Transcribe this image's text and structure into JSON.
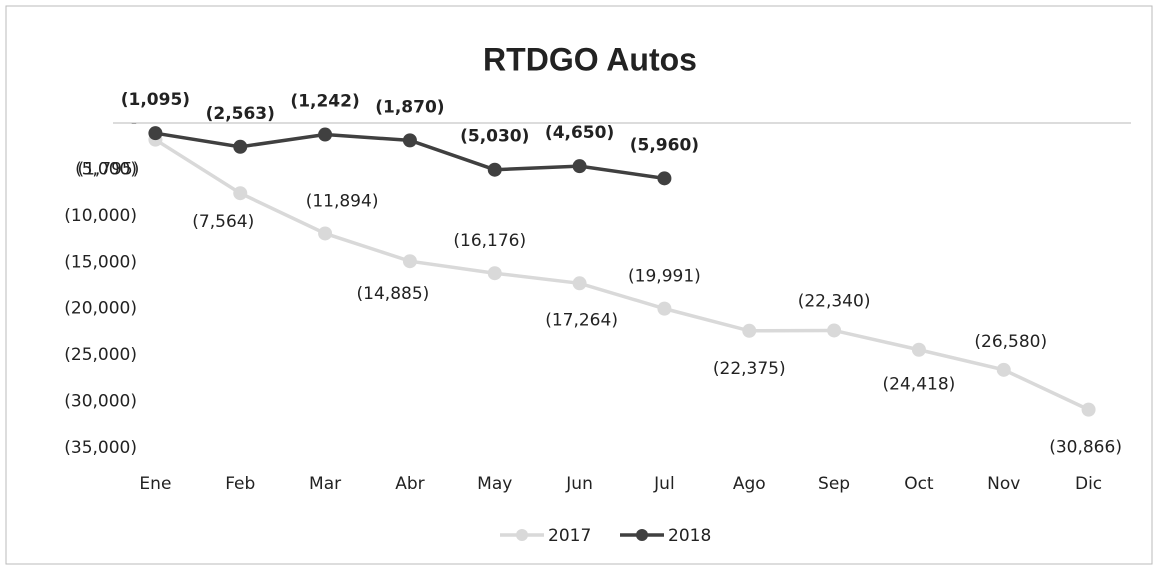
{
  "chart_data": {
    "type": "line",
    "title": "RTDGO Autos",
    "categories": [
      "Ene",
      "Feb",
      "Mar",
      "Abr",
      "May",
      "Jun",
      "Jul",
      "Ago",
      "Sep",
      "Oct",
      "Nov",
      "Dic"
    ],
    "series": [
      {
        "name": "2017",
        "color": "#d9d9d9",
        "values": [
          -1795,
          -7564,
          -11894,
          -14885,
          -16176,
          -17264,
          -19991,
          -22375,
          -22340,
          -24418,
          -26580,
          -30866
        ],
        "value_labels": [
          "(1,795)",
          "(7,564)",
          "(11,894)",
          "(14,885)",
          "(16,176)",
          "(17,264)",
          "(19,991)",
          "(22,375)",
          "(22,340)",
          "(24,418)",
          "(26,580)",
          "(30,866)"
        ]
      },
      {
        "name": "2018",
        "color": "#404040",
        "values": [
          -1095,
          -2563,
          -1242,
          -1870,
          -5030,
          -4650,
          -5960,
          null,
          null,
          null,
          null,
          null
        ],
        "value_labels": [
          "(1,095)",
          "(2,563)",
          "(1,242)",
          "(1,870)",
          "(5,030)",
          "(4,650)",
          "(5,960)",
          null,
          null,
          null,
          null,
          null
        ]
      }
    ],
    "ylim": [
      -35000,
      0
    ],
    "yticks": [
      {
        "value": 0,
        "label": "-"
      },
      {
        "value": -5000,
        "label": "(5,000)"
      },
      {
        "value": -10000,
        "label": "(10,000)"
      },
      {
        "value": -15000,
        "label": "(15,000)"
      },
      {
        "value": -20000,
        "label": "(20,000)"
      },
      {
        "value": -25000,
        "label": "(25,000)"
      },
      {
        "value": -30000,
        "label": "(30,000)"
      },
      {
        "value": -35000,
        "label": "(35,000)"
      }
    ],
    "legend": "bottom"
  }
}
